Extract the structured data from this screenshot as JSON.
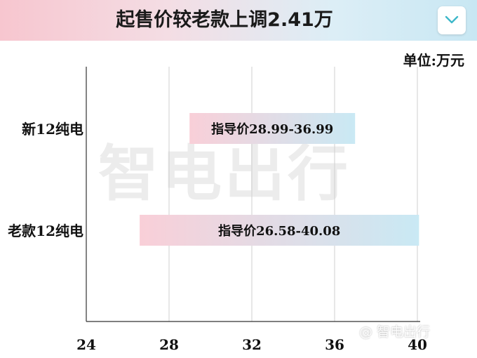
{
  "header": {
    "title": "起售价较老款上调2.41万"
  },
  "unit_label": "单位:万元",
  "watermark": "智电出行",
  "weibo_watermark": "@ 智电出行",
  "colors": {
    "bar_left": "#f9cfd8",
    "bar_right": "#c9e9f4",
    "grid": "#cfcfcf",
    "axis": "#333333"
  },
  "chart_data": {
    "type": "bar",
    "orientation": "horizontal",
    "bar_style": "range",
    "title": "起售价较老款上调2.41万",
    "unit": "单位:万元",
    "categories": [
      "新12纯电",
      "老款12纯电"
    ],
    "series": [
      {
        "values": [
          [
            28.99,
            36.99
          ],
          [
            26.58,
            40.08
          ]
        ],
        "labels": [
          "指导价28.99-36.99",
          "指导价26.58-40.08"
        ]
      }
    ],
    "xlim": [
      24,
      40
    ],
    "x_ticks": [
      "24",
      "28",
      "32",
      "36",
      "40"
    ],
    "x_tick_values": [
      24,
      28,
      32,
      36,
      40
    ],
    "grid": true
  }
}
